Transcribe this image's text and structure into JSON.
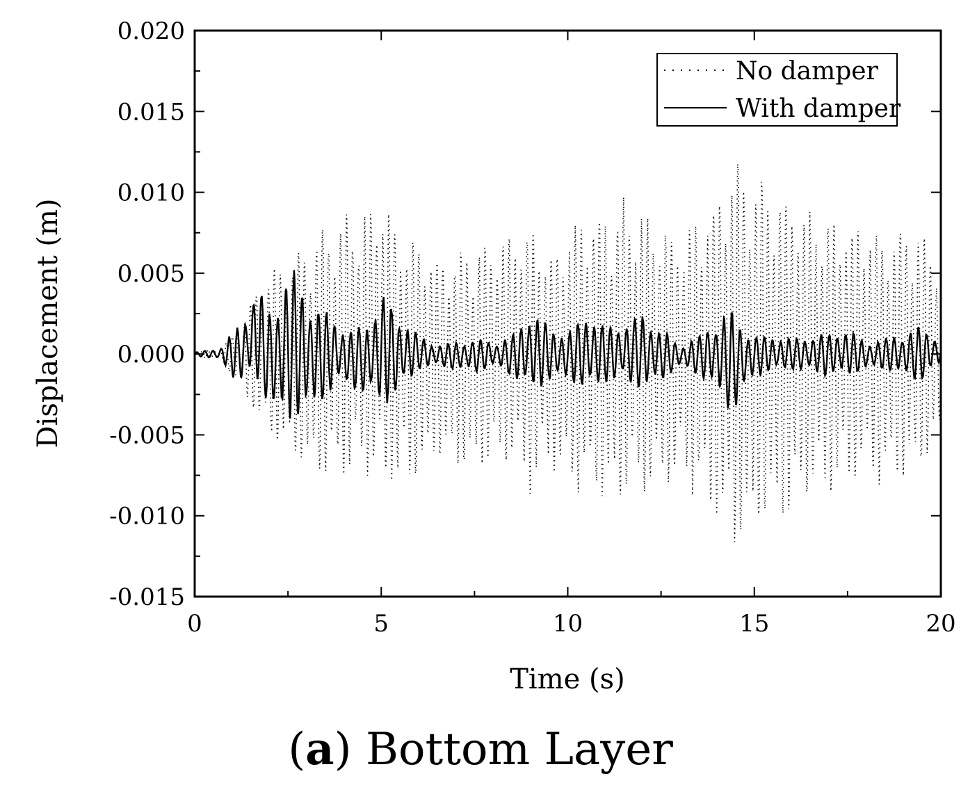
{
  "chart_data": {
    "type": "line",
    "xlabel": "Time (s)",
    "ylabel": "Displacement (m)",
    "xlim": [
      0,
      20
    ],
    "ylim": [
      -0.015,
      0.02
    ],
    "xticks": [
      0,
      5,
      10,
      15,
      20
    ],
    "xtick_labels": [
      "0",
      "5",
      "10",
      "15",
      "20"
    ],
    "yticks": [
      -0.015,
      -0.01,
      -0.005,
      0.0,
      0.005,
      0.01,
      0.015,
      0.02
    ],
    "ytick_labels": [
      "-0.015",
      "-0.010",
      "-0.005",
      "0.000",
      "0.005",
      "0.010",
      "0.015",
      "0.020"
    ],
    "grid": false,
    "legend_position": "top-right",
    "series": [
      {
        "name": "No damper",
        "style": "dotted",
        "color": "#000000",
        "envelope_t": [
          0,
          0.7,
          1.2,
          1.6,
          2.0,
          2.5,
          3.0,
          3.5,
          4.0,
          4.5,
          5.0,
          5.5,
          6.0,
          6.5,
          7.0,
          7.5,
          8.0,
          8.5,
          9.0,
          9.5,
          10.0,
          10.5,
          11.0,
          11.5,
          12.0,
          12.5,
          13.0,
          13.5,
          14.0,
          14.5,
          15.0,
          15.5,
          16.0,
          16.5,
          17.0,
          17.5,
          18.0,
          18.5,
          19.0,
          19.5,
          20.0
        ],
        "envelope_upper": [
          0.0002,
          0.0004,
          0.0018,
          0.0042,
          0.0055,
          0.006,
          0.0075,
          0.0085,
          0.0088,
          0.009,
          0.0102,
          0.0082,
          0.0077,
          0.0065,
          0.0068,
          0.0072,
          0.0074,
          0.0078,
          0.0084,
          0.0065,
          0.008,
          0.0092,
          0.0094,
          0.01,
          0.0091,
          0.0087,
          0.0076,
          0.009,
          0.0105,
          0.0128,
          0.0122,
          0.0112,
          0.0105,
          0.0093,
          0.0088,
          0.0086,
          0.0082,
          0.008,
          0.0084,
          0.0078,
          0.0062
        ],
        "envelope_lower": [
          -0.0002,
          -0.0004,
          -0.002,
          -0.004,
          -0.0055,
          -0.0065,
          -0.0078,
          -0.0082,
          -0.008,
          -0.0078,
          -0.0085,
          -0.0088,
          -0.0082,
          -0.007,
          -0.0072,
          -0.0076,
          -0.007,
          -0.0072,
          -0.0088,
          -0.0072,
          -0.0085,
          -0.0092,
          -0.0095,
          -0.0092,
          -0.009,
          -0.0088,
          -0.008,
          -0.0092,
          -0.0108,
          -0.0128,
          -0.012,
          -0.0112,
          -0.0102,
          -0.0095,
          -0.009,
          -0.0088,
          -0.0082,
          -0.0083,
          -0.008,
          -0.0075,
          -0.0058
        ]
      },
      {
        "name": "With damper",
        "style": "solid",
        "color": "#000000",
        "envelope_t": [
          0,
          0.7,
          1.2,
          1.6,
          1.8,
          2.0,
          2.3,
          2.6,
          3.0,
          3.4,
          3.8,
          4.2,
          4.6,
          5.0,
          5.5,
          6.0,
          6.5,
          7.0,
          7.5,
          8.0,
          8.5,
          9.0,
          9.5,
          10.0,
          10.5,
          11.0,
          11.5,
          12.0,
          12.5,
          13.0,
          13.5,
          14.0,
          14.4,
          15.0,
          15.5,
          16.0,
          16.5,
          17.0,
          17.5,
          18.0,
          18.5,
          19.0,
          19.5,
          20.0
        ],
        "envelope_upper": [
          0.0001,
          0.0004,
          0.002,
          0.0038,
          0.004,
          0.003,
          0.0045,
          0.0055,
          0.004,
          0.003,
          0.0022,
          0.0016,
          0.002,
          0.004,
          0.0025,
          0.0012,
          0.0006,
          0.0008,
          0.001,
          0.0008,
          0.0012,
          0.0028,
          0.0018,
          0.0014,
          0.0028,
          0.0018,
          0.002,
          0.0026,
          0.0016,
          0.0006,
          0.0012,
          0.0024,
          0.0028,
          0.0012,
          0.0012,
          0.001,
          0.0012,
          0.0014,
          0.0016,
          0.0008,
          0.001,
          0.0014,
          0.0018,
          0.001
        ],
        "envelope_lower": [
          -0.0001,
          -0.0004,
          -0.002,
          -0.0015,
          -0.0025,
          -0.0038,
          -0.0044,
          -0.0042,
          -0.004,
          -0.0032,
          -0.002,
          -0.0022,
          -0.0028,
          -0.0034,
          -0.0026,
          -0.001,
          -0.0008,
          -0.001,
          -0.0012,
          -0.0008,
          -0.0014,
          -0.0025,
          -0.0018,
          -0.0016,
          -0.0026,
          -0.0018,
          -0.0018,
          -0.0024,
          -0.0018,
          -0.0008,
          -0.0014,
          -0.0024,
          -0.004,
          -0.0014,
          -0.0012,
          -0.001,
          -0.0012,
          -0.0014,
          -0.0014,
          -0.001,
          -0.001,
          -0.0014,
          -0.0018,
          -0.0006
        ]
      }
    ]
  },
  "caption": {
    "label": "a",
    "text": "Bottom Layer"
  }
}
